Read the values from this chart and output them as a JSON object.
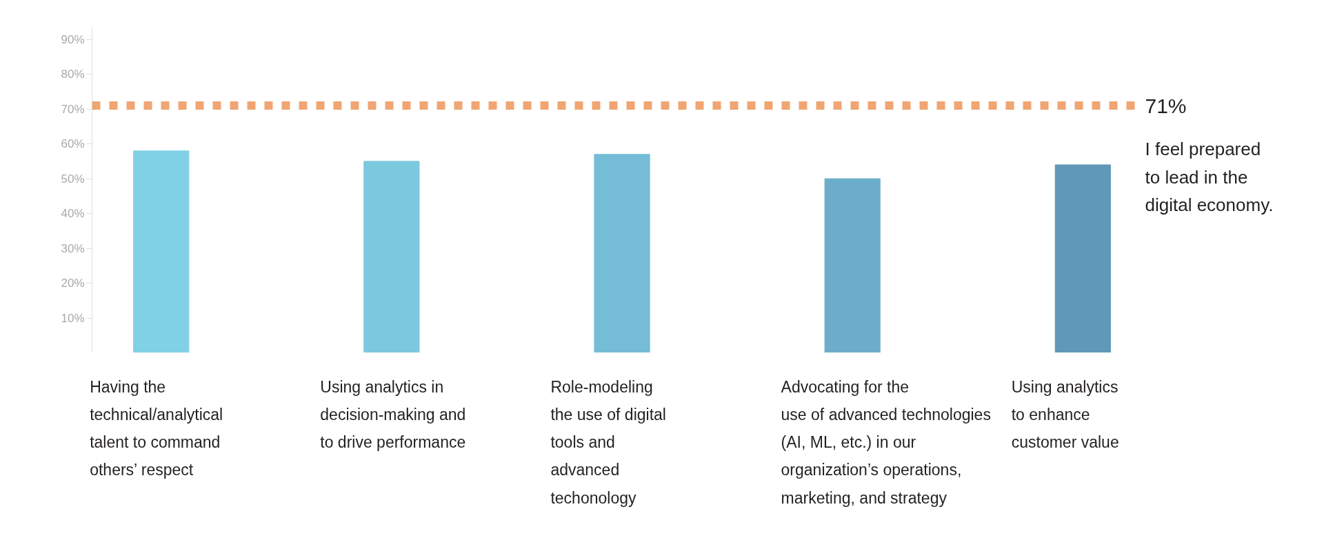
{
  "chart_data": {
    "type": "bar",
    "categories": [
      "Having the\ntechnical/analytical\ntalent to command\nothers’ respect",
      "Using analytics in\ndecision-making and\nto drive performance",
      "Role-modeling\nthe use of digital\ntools and\nadvanced\ntechonology",
      "Advocating for the\nuse of advanced technologies\n(AI, ML, etc.) in our\norganization’s operations,\nmarketing, and strategy",
      "Using analytics\nto enhance\ncustomer value"
    ],
    "values": [
      58,
      55,
      57,
      50,
      54
    ],
    "colors": [
      "#80d0e6",
      "#7cc9df",
      "#75bdd7",
      "#6caec9",
      "#6099b8"
    ],
    "ylim": [
      0,
      93.5
    ],
    "yticks": [
      {
        "value": 10,
        "label": "10%"
      },
      {
        "value": 20,
        "label": "20%"
      },
      {
        "value": 30,
        "label": "30%"
      },
      {
        "value": 40,
        "label": "40%"
      },
      {
        "value": 50,
        "label": "50%"
      },
      {
        "value": 60,
        "label": "60%"
      },
      {
        "value": 70,
        "label": "70%"
      },
      {
        "value": 80,
        "label": "80%"
      },
      {
        "value": 90,
        "label": "90%"
      }
    ],
    "ref_lines": [
      {
        "axis": "y",
        "value": 71,
        "label": "71%",
        "color": "#f0a572",
        "line_style": "dashed"
      }
    ],
    "annotations": [
      "I feel prepared\nto lead in the\ndigital economy."
    ]
  }
}
